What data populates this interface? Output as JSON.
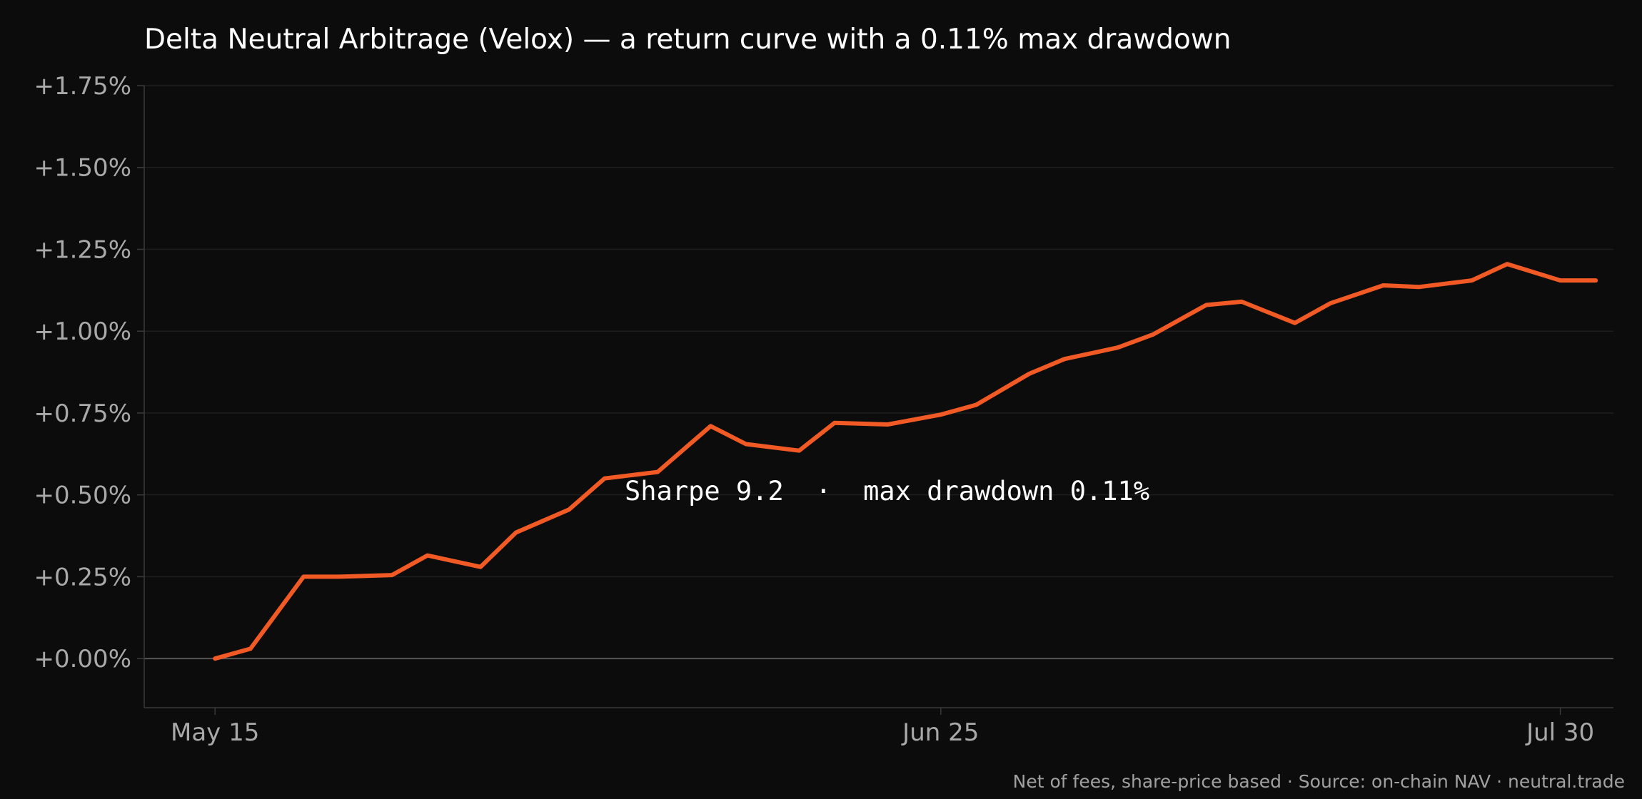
{
  "chart_data": {
    "type": "line",
    "title": "Delta Neutral Arbitrage (Velox) — a return curve with a 0.11% max drawdown",
    "xlabel": "",
    "ylabel": "",
    "x_ticks": [
      {
        "label": "May 15",
        "value": "2024-05-15"
      },
      {
        "label": "Jun 25",
        "value": "2024-06-25"
      },
      {
        "label": "Jul 30",
        "value": "2024-07-30"
      }
    ],
    "y_ticks": [
      "+0.00%",
      "+0.25%",
      "+0.50%",
      "+0.75%",
      "+1.00%",
      "+1.25%",
      "+1.50%",
      "+1.75%"
    ],
    "y_tick_values": [
      0.0,
      0.25,
      0.5,
      0.75,
      1.0,
      1.25,
      1.5,
      1.75
    ],
    "xlim": [
      "2024-05-11",
      "2024-08-02"
    ],
    "ylim": [
      -0.15,
      1.75
    ],
    "grid": true,
    "legend": "none",
    "annotation": "Sharpe 9.2  ·  max drawdown 0.11%",
    "footer": "Net of fees, share-price based · Source: on-chain NAV · neutral.trade",
    "series": [
      {
        "color": "#f15a24",
        "points": [
          {
            "x": "2024-05-15",
            "y": 0.0
          },
          {
            "x": "2024-05-17",
            "y": 0.03
          },
          {
            "x": "2024-05-20",
            "y": 0.25
          },
          {
            "x": "2024-05-22",
            "y": 0.25
          },
          {
            "x": "2024-05-25",
            "y": 0.255
          },
          {
            "x": "2024-05-27",
            "y": 0.315
          },
          {
            "x": "2024-05-30",
            "y": 0.28
          },
          {
            "x": "2024-06-01",
            "y": 0.385
          },
          {
            "x": "2024-06-04",
            "y": 0.455
          },
          {
            "x": "2024-06-06",
            "y": 0.55
          },
          {
            "x": "2024-06-09",
            "y": 0.57
          },
          {
            "x": "2024-06-12",
            "y": 0.71
          },
          {
            "x": "2024-06-14",
            "y": 0.655
          },
          {
            "x": "2024-06-17",
            "y": 0.635
          },
          {
            "x": "2024-06-19",
            "y": 0.72
          },
          {
            "x": "2024-06-22",
            "y": 0.715
          },
          {
            "x": "2024-06-25",
            "y": 0.745
          },
          {
            "x": "2024-06-27",
            "y": 0.775
          },
          {
            "x": "2024-06-30",
            "y": 0.87
          },
          {
            "x": "2024-07-02",
            "y": 0.915
          },
          {
            "x": "2024-07-05",
            "y": 0.95
          },
          {
            "x": "2024-07-07",
            "y": 0.99
          },
          {
            "x": "2024-07-10",
            "y": 1.08
          },
          {
            "x": "2024-07-12",
            "y": 1.09
          },
          {
            "x": "2024-07-15",
            "y": 1.025
          },
          {
            "x": "2024-07-17",
            "y": 1.085
          },
          {
            "x": "2024-07-20",
            "y": 1.14
          },
          {
            "x": "2024-07-22",
            "y": 1.135
          },
          {
            "x": "2024-07-25",
            "y": 1.155
          },
          {
            "x": "2024-07-27",
            "y": 1.205
          },
          {
            "x": "2024-07-30",
            "y": 1.155
          },
          {
            "x": "2024-08-01",
            "y": 1.155
          }
        ]
      }
    ]
  }
}
